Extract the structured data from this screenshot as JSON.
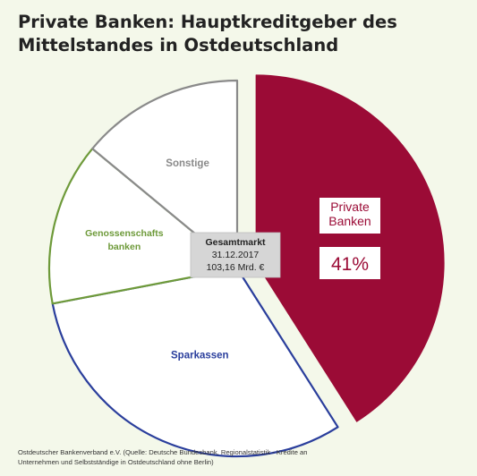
{
  "header": {
    "title_line1": "Private Banken: Hauptkreditgeber des",
    "title_line2": "Mittelstandes in Ostdeutschland"
  },
  "chart_data": {
    "type": "pie",
    "title": "Private Banken: Hauptkreditgeber des Mittelstandes in Ostdeutschland",
    "slices": [
      {
        "name": "Private Banken",
        "label_lines": [
          "Private",
          "Banken"
        ],
        "value": 41,
        "value_label": "41%",
        "color": "#9b0b36",
        "outline": "#9b0b36",
        "exploded": true
      },
      {
        "name": "Sparkassen",
        "label_lines": [
          "Sparkassen"
        ],
        "value": 31,
        "color": "#ffffff",
        "outline": "#2a3e9c",
        "text_color": "#2a3e9c"
      },
      {
        "name": "Genossenschaftsbanken",
        "label_lines": [
          "Genossenschafts",
          "banken"
        ],
        "value": 14,
        "color": "#ffffff",
        "outline": "#6e9a3a",
        "text_color": "#6e9a3a"
      },
      {
        "name": "Sonstige",
        "label_lines": [
          "Sonstige"
        ],
        "value": 14,
        "color": "#ffffff",
        "outline": "#8a8a8a",
        "text_color": "#8a8a8a"
      }
    ],
    "center_box": {
      "lines": [
        "Gesamtmarkt",
        "31.12.2017",
        "103,16 Mrd. €"
      ],
      "color": "#d6d6d6"
    }
  },
  "footer": {
    "source_line1": "Ostdeutscher Bankenverband e.V. (Quelle: Deutsche Bundesbank, Regionalstatistik - Kredite an",
    "source_line2": "Unternehmen und Selbstständige in Ostdeutschland ohne Berlin)"
  }
}
